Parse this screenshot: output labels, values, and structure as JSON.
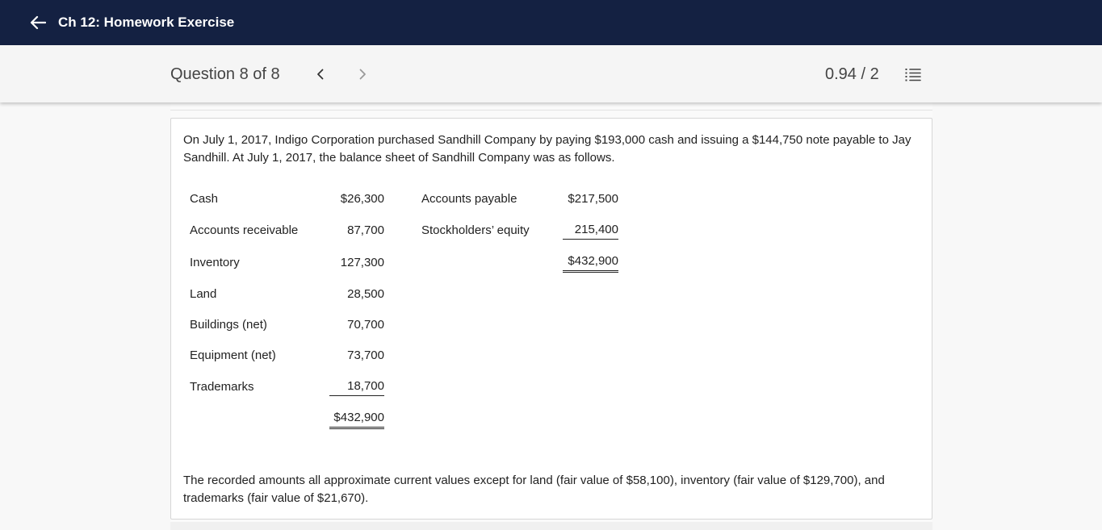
{
  "header": {
    "title": "Ch 12: Homework Exercise",
    "back_icon": "arrow-left-icon",
    "background": "#142142"
  },
  "question_bar": {
    "label": "Question 8 of 8",
    "prev_icon": "chevron-left-icon",
    "next_icon": "chevron-right-icon",
    "score": "0.94 / 2",
    "list_icon": "numbered-list-icon"
  },
  "problem": {
    "intro": "On July 1, 2017, Indigo Corporation purchased Sandhill Company by paying $193,000 cash and issuing a $144,750 note payable to Jay Sandhill. At July 1, 2017, the balance sheet of Sandhill Company was as follows.",
    "assets": [
      {
        "label": "Cash",
        "value": "$26,300"
      },
      {
        "label": "Accounts receivable",
        "value": "87,700"
      },
      {
        "label": "Inventory",
        "value": "127,300"
      },
      {
        "label": "Land",
        "value": "28,500"
      },
      {
        "label": "Buildings (net)",
        "value": "70,700"
      },
      {
        "label": "Equipment (net)",
        "value": "73,700"
      },
      {
        "label": "Trademarks",
        "value": "18,700"
      }
    ],
    "assets_total": "$432,900",
    "liabilities": [
      {
        "label": "Accounts payable",
        "value": "$217,500"
      },
      {
        "label": "Stockholders’ equity",
        "value": "215,400"
      }
    ],
    "liabilities_total": "$432,900",
    "note": "The recorded amounts all approximate current values except for land (fair value of $58,100), inventory (fair value of $129,700), and trademarks (fair value of $21,670)."
  }
}
